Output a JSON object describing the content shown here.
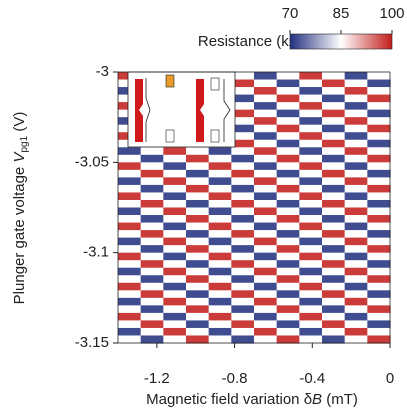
{
  "chart_data": {
    "type": "heatmap",
    "xlabel": {
      "text": "Magnetic field variation δ",
      "var": "B",
      "unit": " (mT)"
    },
    "ylabel": {
      "text": "Plunger gate voltage ",
      "var": "V",
      "sub": "pg1",
      "unit": " (V)"
    },
    "xlim": [
      -1.4,
      0
    ],
    "xticks": [
      -1.2,
      -0.8,
      -0.4,
      0
    ],
    "ylim": [
      -3.15,
      -3
    ],
    "yticks": [
      -3.15,
      -3.1,
      -3.05,
      -3
    ],
    "colorbar_label": "Resistance (kΩ)",
    "zlim": [
      70,
      100
    ],
    "zticks": [
      70,
      85,
      100
    ],
    "colormap": [
      "#22307f",
      "#ffffff",
      "#c21d1a"
    ],
    "z": [
      [
        98,
        85,
        72,
        85,
        98,
        85,
        72,
        85,
        98,
        85,
        72,
        85
      ],
      [
        85,
        98,
        85,
        72,
        85,
        98,
        85,
        72,
        85,
        98,
        85,
        72
      ],
      [
        72,
        85,
        98,
        85,
        72,
        85,
        98,
        85,
        72,
        85,
        98,
        85
      ],
      [
        85,
        72,
        85,
        98,
        85,
        72,
        85,
        98,
        85,
        72,
        85,
        98
      ],
      [
        98,
        85,
        72,
        85,
        98,
        85,
        72,
        85,
        98,
        85,
        72,
        85
      ],
      [
        85,
        98,
        85,
        72,
        85,
        98,
        85,
        72,
        85,
        98,
        85,
        72
      ],
      [
        72,
        85,
        98,
        85,
        72,
        85,
        98,
        85,
        72,
        85,
        98,
        85
      ],
      [
        85,
        72,
        85,
        98,
        85,
        72,
        85,
        98,
        85,
        72,
        85,
        98
      ],
      [
        98,
        85,
        72,
        85,
        98,
        85,
        72,
        85,
        98,
        85,
        72,
        85
      ],
      [
        85,
        98,
        85,
        72,
        85,
        98,
        85,
        72,
        85,
        98,
        85,
        72
      ],
      [
        72,
        85,
        98,
        85,
        72,
        85,
        98,
        85,
        72,
        85,
        98,
        85
      ],
      [
        85,
        72,
        85,
        98,
        85,
        72,
        85,
        98,
        85,
        72,
        85,
        98
      ],
      [
        98,
        85,
        72,
        85,
        98,
        85,
        72,
        85,
        98,
        85,
        72,
        85
      ],
      [
        85,
        98,
        85,
        72,
        85,
        98,
        85,
        72,
        85,
        98,
        85,
        72
      ],
      [
        72,
        85,
        98,
        85,
        72,
        85,
        98,
        85,
        72,
        85,
        98,
        85
      ],
      [
        85,
        72,
        85,
        98,
        85,
        72,
        85,
        98,
        85,
        72,
        85,
        98
      ],
      [
        98,
        85,
        72,
        85,
        98,
        85,
        72,
        85,
        98,
        85,
        72,
        85
      ],
      [
        85,
        98,
        85,
        72,
        85,
        98,
        85,
        72,
        85,
        98,
        85,
        72
      ],
      [
        72,
        85,
        98,
        85,
        72,
        85,
        98,
        85,
        72,
        85,
        98,
        85
      ],
      [
        85,
        72,
        85,
        98,
        85,
        72,
        85,
        98,
        85,
        72,
        85,
        98
      ],
      [
        98,
        85,
        72,
        85,
        98,
        85,
        72,
        85,
        98,
        85,
        72,
        85
      ],
      [
        85,
        98,
        85,
        72,
        85,
        98,
        85,
        72,
        85,
        98,
        85,
        72
      ],
      [
        72,
        85,
        98,
        85,
        72,
        85,
        98,
        85,
        72,
        85,
        98,
        85
      ],
      [
        85,
        72,
        85,
        98,
        85,
        72,
        85,
        98,
        85,
        72,
        85,
        98
      ],
      [
        98,
        85,
        72,
        85,
        98,
        85,
        72,
        85,
        98,
        85,
        72,
        85
      ],
      [
        85,
        98,
        85,
        72,
        85,
        98,
        85,
        72,
        85,
        98,
        85,
        72
      ],
      [
        72,
        85,
        98,
        85,
        72,
        85,
        98,
        85,
        72,
        85,
        98,
        85
      ],
      [
        85,
        72,
        85,
        98,
        85,
        72,
        85,
        98,
        85,
        72,
        85,
        98
      ],
      [
        98,
        85,
        72,
        85,
        98,
        85,
        72,
        85,
        98,
        85,
        72,
        85
      ],
      [
        85,
        98,
        85,
        72,
        85,
        98,
        85,
        72,
        85,
        98,
        85,
        72
      ],
      [
        72,
        85,
        98,
        85,
        72,
        85,
        98,
        85,
        72,
        85,
        98,
        85
      ],
      [
        85,
        72,
        85,
        98,
        85,
        72,
        85,
        98,
        85,
        72,
        85,
        98
      ],
      [
        98,
        85,
        72,
        85,
        98,
        85,
        72,
        85,
        98,
        85,
        72,
        85
      ],
      [
        85,
        98,
        85,
        72,
        85,
        98,
        85,
        72,
        85,
        98,
        85,
        72
      ],
      [
        72,
        85,
        98,
        85,
        72,
        85,
        98,
        85,
        72,
        85,
        98,
        85
      ],
      [
        85,
        72,
        85,
        98,
        85,
        72,
        85,
        98,
        85,
        72,
        85,
        98
      ]
    ]
  }
}
